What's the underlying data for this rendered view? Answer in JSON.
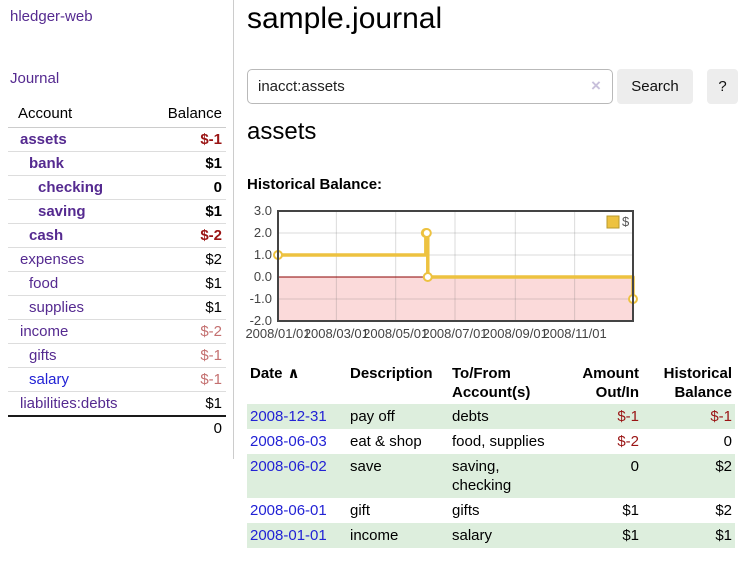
{
  "app": {
    "title": "hledger-web"
  },
  "sidebar": {
    "journal_label": "Journal",
    "table": {
      "account_header": "Account",
      "balance_header": "Balance",
      "rows": [
        {
          "account": "assets",
          "depth": 0,
          "bold": true,
          "balance": "$-1",
          "balance_style": "neg-strong",
          "link_variant": "purple"
        },
        {
          "account": "bank",
          "depth": 1,
          "bold": true,
          "balance": "$1",
          "balance_style": "pos",
          "link_variant": "purple"
        },
        {
          "account": "checking",
          "depth": 2,
          "bold": true,
          "balance": "0",
          "balance_style": "pos",
          "link_variant": "purple"
        },
        {
          "account": "saving",
          "depth": 2,
          "bold": true,
          "balance": "$1",
          "balance_style": "pos",
          "link_variant": "purple"
        },
        {
          "account": "cash",
          "depth": 1,
          "bold": true,
          "balance": "$-2",
          "balance_style": "neg-strong",
          "link_variant": "purple"
        },
        {
          "account": "expenses",
          "depth": 0,
          "bold": false,
          "balance": "$2",
          "balance_style": "pos",
          "link_variant": "purple"
        },
        {
          "account": "food",
          "depth": 1,
          "bold": false,
          "balance": "$1",
          "balance_style": "pos",
          "link_variant": "purple"
        },
        {
          "account": "supplies",
          "depth": 1,
          "bold": false,
          "balance": "$1",
          "balance_style": "pos",
          "link_variant": "purple"
        },
        {
          "account": "income",
          "depth": 0,
          "bold": false,
          "balance": "$-2",
          "balance_style": "neg-soft",
          "link_variant": "purple"
        },
        {
          "account": "gifts",
          "depth": 1,
          "bold": false,
          "balance": "$-1",
          "balance_style": "neg-soft",
          "link_variant": "purple"
        },
        {
          "account": "salary",
          "depth": 1,
          "bold": false,
          "balance": "$-1",
          "balance_style": "neg-soft",
          "link_variant": "blue"
        },
        {
          "account": "liabilities:debts",
          "depth": 0,
          "bold": false,
          "balance": "$1",
          "balance_style": "pos",
          "link_variant": "purple"
        }
      ],
      "total": "0"
    }
  },
  "main": {
    "title": "sample.journal",
    "search": {
      "value": "inacct:assets",
      "clear_icon": "×",
      "button_label": "Search",
      "help_label": "?"
    },
    "account_heading": "assets",
    "chart_label": "Historical Balance:"
  },
  "chart_data": {
    "type": "line",
    "step": true,
    "series": [
      {
        "name": "$",
        "color": "#edc240",
        "points": [
          [
            "2008-01-01",
            1
          ],
          [
            "2008-06-01",
            2
          ],
          [
            "2008-06-02",
            2
          ],
          [
            "2008-06-03",
            0
          ],
          [
            "2008-12-31",
            -1
          ]
        ]
      }
    ],
    "xlim": [
      "2008-01-01",
      "2008-12-31"
    ],
    "ylim": [
      -2,
      3
    ],
    "x_ticks": [
      "2008/01/01",
      "2008/03/01",
      "2008/05/01",
      "2008/07/01",
      "2008/09/01",
      "2008/11/01"
    ],
    "y_ticks": [
      "3.0",
      "2.0",
      "1.0",
      "0.0",
      "-1.0",
      "-2.0"
    ],
    "legend": {
      "label": "$",
      "position": "top-right"
    },
    "grid": true,
    "negative_region_color": "#fbdada",
    "zero_line_color": "#8b0000",
    "border_color": "#444444"
  },
  "register": {
    "headers": {
      "date": "Date",
      "description": "Description",
      "accounts": "To/From Account(s)",
      "amount": "Amount Out/In",
      "balance": "Historical Balance"
    },
    "sort_icon": "∧",
    "rows": [
      {
        "date": "2008-12-31",
        "description": "pay off",
        "accounts": "debts",
        "amount": "$-1",
        "amount_style": "neg-strong",
        "balance": "$-1",
        "balance_style": "neg-strong"
      },
      {
        "date": "2008-06-03",
        "description": "eat & shop",
        "accounts": "food, supplies",
        "amount": "$-2",
        "amount_style": "neg-strong",
        "balance": "0",
        "balance_style": "pos"
      },
      {
        "date": "2008-06-02",
        "description": "save",
        "accounts": "saving, checking",
        "amount": "0",
        "amount_style": "pos",
        "balance": "$2",
        "balance_style": "pos"
      },
      {
        "date": "2008-06-01",
        "description": "gift",
        "accounts": "gifts",
        "amount": "$1",
        "amount_style": "pos",
        "balance": "$2",
        "balance_style": "pos"
      },
      {
        "date": "2008-01-01",
        "description": "income",
        "accounts": "salary",
        "amount": "$1",
        "amount_style": "pos",
        "balance": "$1",
        "balance_style": "pos"
      }
    ]
  },
  "colors": {
    "link_purple": "#552a90",
    "link_blue": "#2222d5",
    "negative_strong": "#9a1414",
    "negative_soft": "#c47070",
    "row_green": "#ddeedd",
    "button_gray": "#ededed",
    "chart_series_gold": "#edc240",
    "chart_negative_bg": "#fbdada",
    "chart_zero_line": "#8b0000"
  }
}
